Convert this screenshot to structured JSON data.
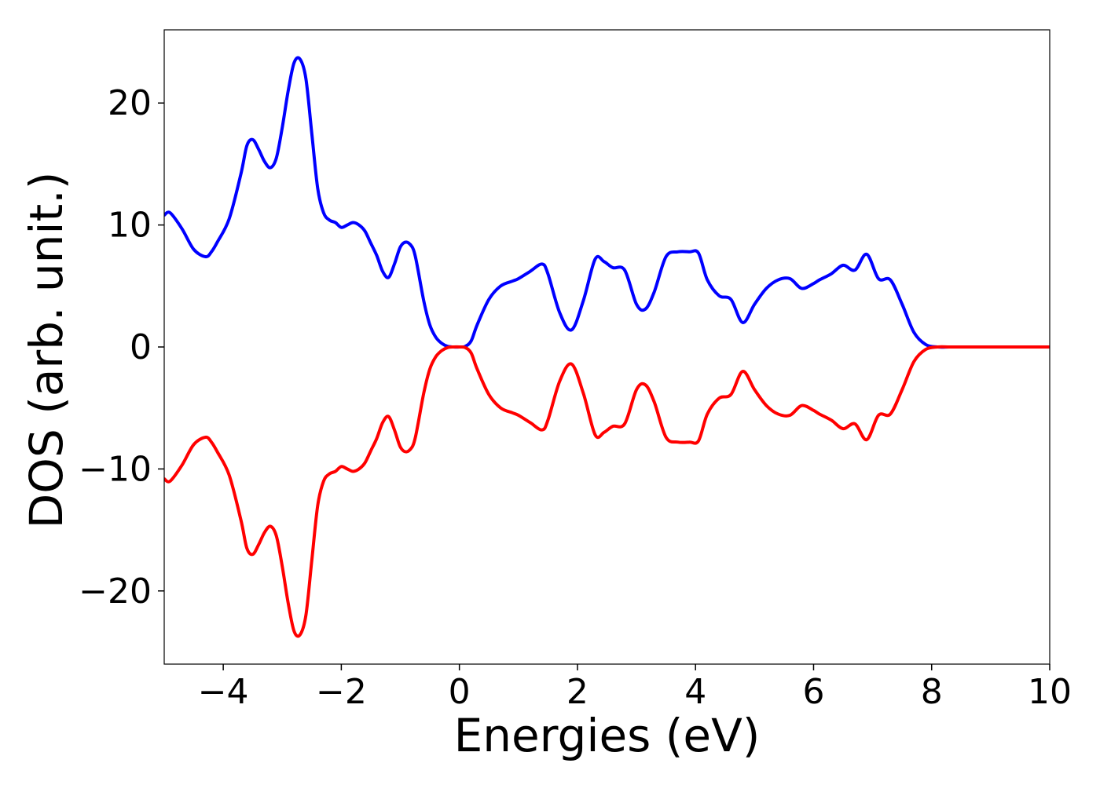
{
  "chart_data": {
    "type": "line",
    "title": "",
    "xlabel": "Energies (eV)",
    "ylabel": "DOS (arb. unit.)",
    "xlim": [
      -5,
      10
    ],
    "ylim": [
      -26,
      26
    ],
    "xticks": [
      -4,
      -2,
      0,
      2,
      4,
      6,
      8,
      10
    ],
    "yticks": [
      -20,
      -10,
      0,
      10,
      20
    ],
    "xtick_labels": [
      "−4",
      "−2",
      "0",
      "2",
      "4",
      "6",
      "8",
      "10"
    ],
    "ytick_labels": [
      "−20",
      "−10",
      "0",
      "10",
      "20"
    ],
    "grid": false,
    "legend": "none",
    "series": [
      {
        "color": "#0000ff",
        "x": [
          -5.0,
          -4.9,
          -4.7,
          -4.5,
          -4.3,
          -4.2,
          -4.1,
          -3.9,
          -3.7,
          -3.6,
          -3.5,
          -3.4,
          -3.3,
          -3.2,
          -3.1,
          -3.0,
          -2.9,
          -2.8,
          -2.7,
          -2.6,
          -2.5,
          -2.4,
          -2.3,
          -2.2,
          -2.1,
          -2.0,
          -1.9,
          -1.8,
          -1.7,
          -1.6,
          -1.5,
          -1.4,
          -1.3,
          -1.2,
          -1.1,
          -1.0,
          -0.9,
          -0.8,
          -0.75,
          -0.7,
          -0.6,
          -0.5,
          -0.4,
          -0.3,
          -0.2,
          -0.1,
          0.0,
          0.1,
          0.2,
          0.3,
          0.5,
          0.7,
          0.9,
          1.0,
          1.2,
          1.4,
          1.5,
          1.7,
          1.9,
          2.1,
          2.3,
          2.45,
          2.6,
          2.8,
          3.0,
          3.15,
          3.3,
          3.5,
          3.7,
          3.9,
          4.05,
          4.2,
          4.4,
          4.6,
          4.8,
          5.0,
          5.2,
          5.4,
          5.6,
          5.8,
          6.0,
          6.1,
          6.3,
          6.5,
          6.7,
          6.9,
          7.1,
          7.3,
          7.5,
          7.7,
          7.9,
          8.1,
          8.3,
          8.5,
          8.6,
          9.0,
          10.0
        ],
        "y": [
          10.8,
          11.0,
          9.7,
          8.0,
          7.4,
          7.8,
          8.6,
          10.5,
          14.2,
          16.5,
          17.0,
          16.2,
          15.2,
          14.7,
          15.5,
          18.0,
          21.0,
          23.3,
          23.6,
          22.0,
          17.5,
          13.0,
          11.0,
          10.4,
          10.2,
          9.8,
          10.0,
          10.2,
          10.0,
          9.5,
          8.5,
          7.5,
          6.2,
          5.7,
          6.8,
          8.2,
          8.6,
          8.2,
          7.5,
          6.3,
          3.7,
          1.8,
          0.8,
          0.3,
          0.05,
          0.0,
          0.0,
          0.05,
          0.5,
          1.8,
          3.9,
          5.0,
          5.4,
          5.6,
          6.2,
          6.8,
          6.0,
          2.8,
          1.4,
          3.8,
          7.2,
          7.0,
          6.5,
          6.3,
          3.5,
          3.1,
          4.5,
          7.4,
          7.8,
          7.8,
          7.7,
          5.5,
          4.2,
          3.9,
          2.0,
          3.5,
          4.8,
          5.5,
          5.6,
          4.8,
          5.2,
          5.5,
          6.0,
          6.7,
          6.3,
          7.6,
          5.6,
          5.5,
          3.5,
          1.2,
          0.2,
          0.0,
          0.0,
          0.0,
          0.0,
          0.0,
          0.0
        ]
      },
      {
        "color": "#ff0000",
        "x": [
          -5.0,
          -4.9,
          -4.7,
          -4.5,
          -4.3,
          -4.2,
          -4.1,
          -3.9,
          -3.7,
          -3.6,
          -3.5,
          -3.4,
          -3.3,
          -3.2,
          -3.1,
          -3.0,
          -2.9,
          -2.8,
          -2.7,
          -2.6,
          -2.5,
          -2.4,
          -2.3,
          -2.2,
          -2.1,
          -2.0,
          -1.9,
          -1.8,
          -1.7,
          -1.6,
          -1.5,
          -1.4,
          -1.3,
          -1.2,
          -1.1,
          -1.0,
          -0.9,
          -0.8,
          -0.75,
          -0.7,
          -0.6,
          -0.5,
          -0.4,
          -0.3,
          -0.2,
          -0.1,
          0.0,
          0.1,
          0.2,
          0.3,
          0.5,
          0.7,
          0.9,
          1.0,
          1.2,
          1.4,
          1.5,
          1.7,
          1.9,
          2.1,
          2.3,
          2.45,
          2.6,
          2.8,
          3.0,
          3.15,
          3.3,
          3.5,
          3.7,
          3.9,
          4.05,
          4.2,
          4.4,
          4.6,
          4.8,
          5.0,
          5.2,
          5.4,
          5.6,
          5.8,
          6.0,
          6.1,
          6.3,
          6.5,
          6.7,
          6.9,
          7.1,
          7.3,
          7.5,
          7.7,
          7.9,
          8.1,
          8.3,
          8.5,
          8.6,
          9.0,
          10.0
        ],
        "y": [
          -10.8,
          -11.0,
          -9.7,
          -8.0,
          -7.4,
          -7.8,
          -8.6,
          -10.5,
          -14.2,
          -16.5,
          -17.0,
          -16.2,
          -15.2,
          -14.7,
          -15.5,
          -18.0,
          -21.0,
          -23.3,
          -23.6,
          -22.0,
          -17.5,
          -13.0,
          -11.0,
          -10.4,
          -10.2,
          -9.8,
          -10.0,
          -10.2,
          -10.0,
          -9.5,
          -8.5,
          -7.5,
          -6.2,
          -5.7,
          -6.8,
          -8.2,
          -8.6,
          -8.2,
          -7.5,
          -6.3,
          -3.7,
          -1.8,
          -0.8,
          -0.3,
          -0.05,
          0.0,
          0.0,
          -0.05,
          -0.5,
          -1.8,
          -3.9,
          -5.0,
          -5.4,
          -5.6,
          -6.2,
          -6.8,
          -6.0,
          -2.8,
          -1.4,
          -3.8,
          -7.2,
          -7.0,
          -6.5,
          -6.3,
          -3.5,
          -3.1,
          -4.5,
          -7.4,
          -7.8,
          -7.8,
          -7.7,
          -5.5,
          -4.2,
          -3.9,
          -2.0,
          -3.5,
          -4.8,
          -5.5,
          -5.6,
          -4.8,
          -5.2,
          -5.5,
          -6.0,
          -6.7,
          -6.3,
          -7.6,
          -5.6,
          -5.5,
          -3.5,
          -1.2,
          -0.2,
          0.0,
          0.0,
          0.0,
          0.0,
          0.0,
          0.0
        ]
      }
    ]
  }
}
